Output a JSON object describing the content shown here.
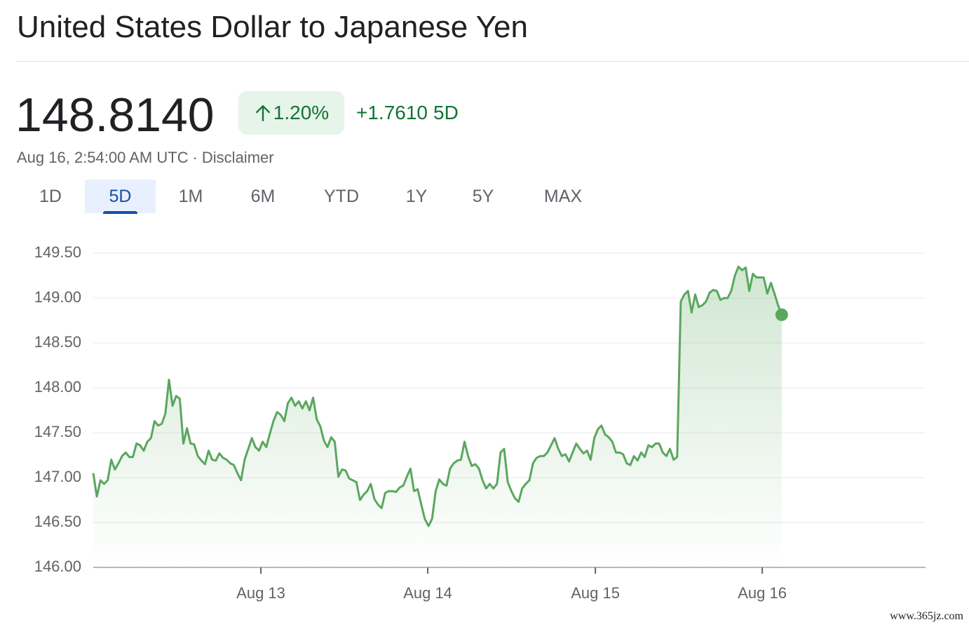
{
  "header": {
    "title": "United States Dollar to Japanese Yen",
    "price": "148.8140",
    "change_percent": "1.20%",
    "change": "+1.7610",
    "change_period": "5D",
    "timestamp": "Aug 16, 2:54:00 AM UTC",
    "separator": "·",
    "disclaimer": "Disclaimer"
  },
  "tabs": {
    "items": [
      "1D",
      "5D",
      "1M",
      "6M",
      "YTD",
      "1Y",
      "5Y",
      "MAX"
    ],
    "selected": 1
  },
  "watermark": "www.365jz.com",
  "chart_data": {
    "type": "line",
    "color": "#5aa75e",
    "grid": true,
    "values": [
      147.05,
      146.79,
      146.97,
      146.93,
      146.97,
      147.2,
      147.09,
      147.16,
      147.24,
      147.28,
      147.23,
      147.23,
      147.38,
      147.36,
      147.3,
      147.4,
      147.44,
      147.63,
      147.58,
      147.6,
      147.71,
      148.09,
      147.8,
      147.91,
      147.88,
      147.38,
      147.55,
      147.38,
      147.37,
      147.24,
      147.19,
      147.15,
      147.3,
      147.2,
      147.19,
      147.27,
      147.22,
      147.2,
      147.16,
      147.14,
      147.05,
      146.97,
      147.2,
      147.32,
      147.44,
      147.34,
      147.3,
      147.4,
      147.34,
      147.49,
      147.63,
      147.73,
      147.7,
      147.63,
      147.83,
      147.89,
      147.8,
      147.85,
      147.77,
      147.85,
      147.75,
      147.89,
      147.65,
      147.57,
      147.41,
      147.34,
      147.45,
      147.4,
      147.01,
      147.09,
      147.08,
      146.99,
      146.97,
      146.95,
      146.75,
      146.81,
      146.85,
      146.93,
      146.76,
      146.7,
      146.66,
      146.83,
      146.85,
      146.85,
      146.84,
      146.89,
      146.91,
      147.01,
      147.1,
      146.85,
      146.87,
      146.7,
      146.54,
      146.46,
      146.54,
      146.85,
      146.98,
      146.93,
      146.91,
      147.1,
      147.16,
      147.19,
      147.2,
      147.4,
      147.24,
      147.13,
      147.15,
      147.1,
      146.97,
      146.88,
      146.93,
      146.88,
      146.93,
      147.28,
      147.32,
      146.95,
      146.85,
      146.77,
      146.73,
      146.88,
      146.93,
      146.97,
      147.16,
      147.22,
      147.24,
      147.24,
      147.28,
      147.36,
      147.44,
      147.32,
      147.24,
      147.26,
      147.18,
      147.28,
      147.38,
      147.32,
      147.27,
      147.3,
      147.2,
      147.44,
      147.54,
      147.58,
      147.48,
      147.45,
      147.4,
      147.28,
      147.28,
      147.26,
      147.16,
      147.14,
      147.24,
      147.19,
      147.28,
      147.23,
      147.36,
      147.34,
      147.38,
      147.38,
      147.28,
      147.24,
      147.32,
      147.2,
      147.23,
      148.96,
      149.04,
      149.08,
      148.84,
      149.04,
      148.9,
      148.92,
      148.96,
      149.06,
      149.09,
      149.08,
      148.98,
      149.0,
      149.0,
      149.08,
      149.25,
      149.35,
      149.31,
      149.34,
      149.08,
      149.27,
      149.23,
      149.23,
      149.23,
      149.05,
      149.17,
      149.05,
      148.92,
      148.814
    ],
    "xlim": [
      0,
      230.9
    ],
    "xticks": [
      {
        "value": 46.5,
        "label": "Aug 13"
      },
      {
        "value": 92.8,
        "label": "Aug 14"
      },
      {
        "value": 139.3,
        "label": "Aug 15"
      },
      {
        "value": 185.6,
        "label": "Aug 16"
      }
    ],
    "ylim": [
      146,
      149.5
    ],
    "yticks": [
      {
        "value": 146,
        "label": "146.00"
      },
      {
        "value": 146.5,
        "label": "146.50"
      },
      {
        "value": 147,
        "label": "147.00"
      },
      {
        "value": 147.5,
        "label": "147.50"
      },
      {
        "value": 148,
        "label": "148.00"
      },
      {
        "value": 148.5,
        "label": "148.50"
      },
      {
        "value": 149,
        "label": "149.00"
      },
      {
        "value": 149.5,
        "label": "149.50"
      }
    ]
  }
}
